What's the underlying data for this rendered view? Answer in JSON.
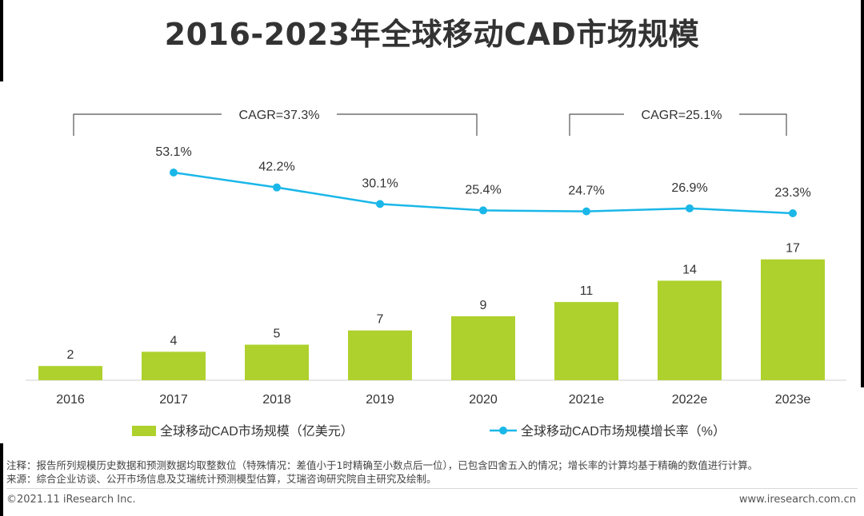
{
  "title": "2016-2023年全球移动CAD市场规模",
  "chart_data": {
    "type": "bar+line",
    "categories": [
      "2016",
      "2017",
      "2018",
      "2019",
      "2020",
      "2021e",
      "2022e",
      "2023e"
    ],
    "series": [
      {
        "name": "全球移动CAD市场规模（亿美元）",
        "type": "bar",
        "values": [
          2,
          4,
          5,
          7,
          9,
          11,
          14,
          17
        ],
        "labels": [
          "2",
          "4",
          "5",
          "7",
          "9",
          "11",
          "14",
          "17"
        ],
        "color": "#aed12d"
      },
      {
        "name": "全球移动CAD市场规模增长率（%）",
        "type": "line",
        "values": [
          null,
          53.1,
          42.2,
          30.1,
          25.4,
          24.7,
          26.9,
          23.3
        ],
        "labels": [
          "",
          "53.1%",
          "42.2%",
          "30.1%",
          "25.4%",
          "24.7%",
          "26.9%",
          "23.3%"
        ],
        "color": "#1ab7e8"
      }
    ],
    "annotations": [
      {
        "text": "CAGR=37.3%",
        "from": "2016",
        "to": "2020"
      },
      {
        "text": "CAGR=25.1%",
        "from": "2021e",
        "to": "2023e"
      }
    ]
  },
  "notes": {
    "note1": "注释：报告所列规模历史数据和预测数据均取整数位（特殊情况：差值小于1时精确至小数点后一位），已包含四舍五入的情况；增长率的计算均基于精确的数值进行计算。",
    "source": "来源：综合企业访谈、公开市场信息及艾瑞统计预测模型估算，艾瑞咨询研究院自主研究及绘制。"
  },
  "footer": {
    "copyright": "©2021.11 iResearch Inc.",
    "website": "www.iresearch.com.cn"
  }
}
